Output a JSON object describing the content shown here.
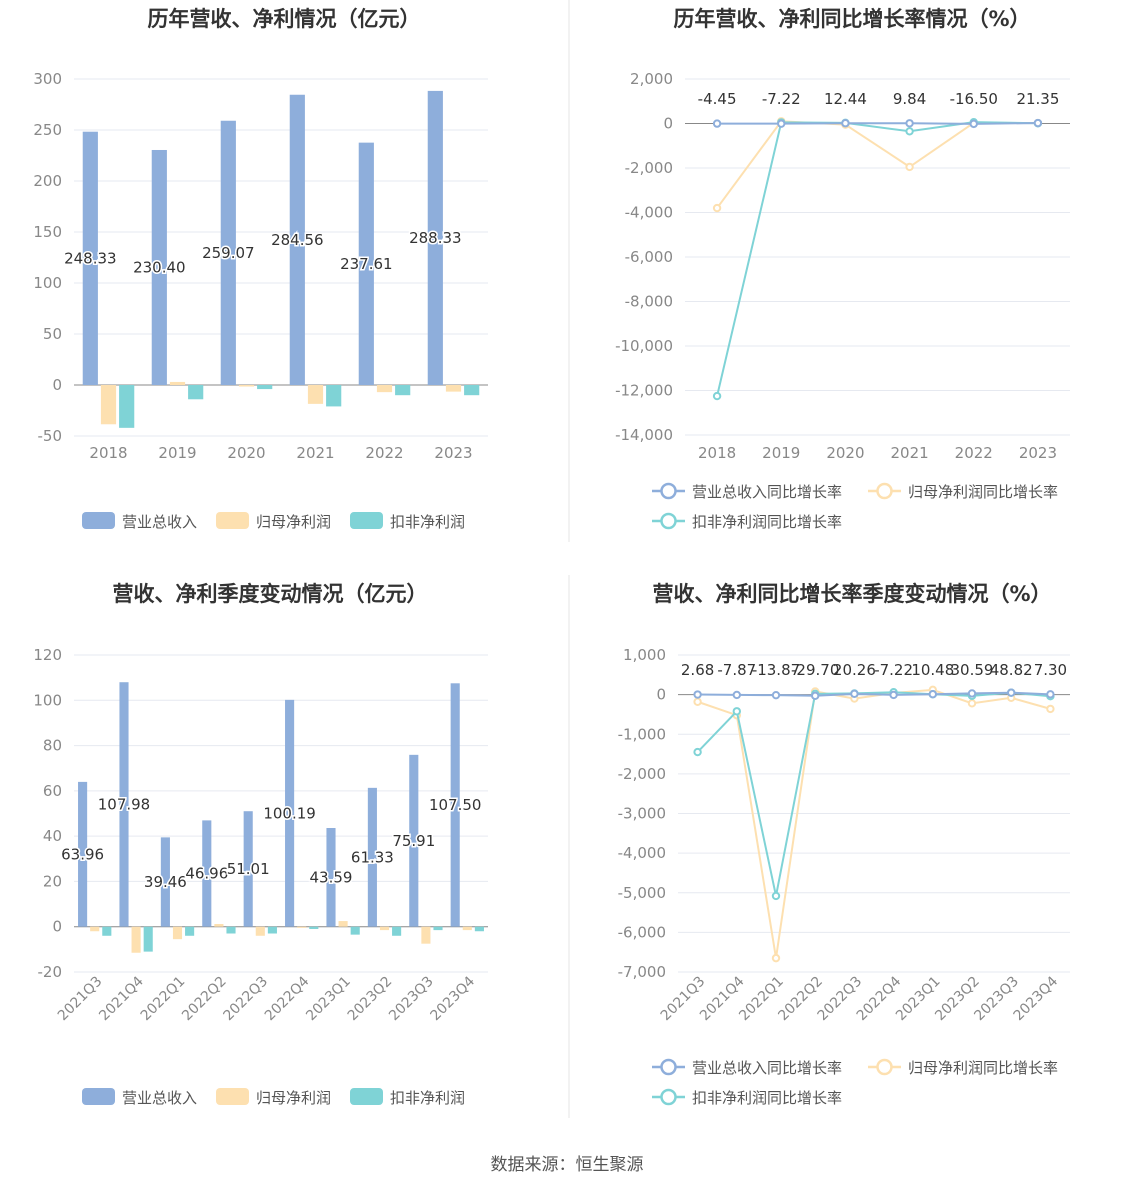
{
  "footer": {
    "source": "数据来源：恒生聚源"
  },
  "colors": {
    "revenue": "#8eaedb",
    "net_profit": "#fde0b0",
    "deducted_profit": "#7fd3d6",
    "grid": "#e6e9f0",
    "axis_text": "#888888",
    "label_text": "#333333",
    "title_text": "#333333",
    "divider": "#e0e0e0"
  },
  "chart_data": [
    {
      "type": "bar",
      "title": "历年营收、净利情况（亿元）",
      "categories": [
        "2018",
        "2019",
        "2020",
        "2021",
        "2022",
        "2023"
      ],
      "series": [
        {
          "name": "营业总收入",
          "color": "#8eaedb",
          "values": [
            248.33,
            230.4,
            259.07,
            284.56,
            237.61,
            288.33
          ],
          "labels": [
            "248.33",
            "230.40",
            "259.07",
            "284.56",
            "237.61",
            "288.33"
          ]
        },
        {
          "name": "归母净利润",
          "color": "#fde0b0",
          "values": [
            -38.5,
            3.0,
            -1.5,
            -18.5,
            -7.0,
            -6.5
          ]
        },
        {
          "name": "扣非净利润",
          "color": "#7fd3d6",
          "values": [
            -42.0,
            -14.0,
            -4.0,
            -21.0,
            -10.0,
            -10.0
          ]
        }
      ],
      "ylim": [
        -50,
        300
      ],
      "yticks": [
        "300",
        "250",
        "200",
        "150",
        "100",
        "50",
        "0",
        "-50"
      ],
      "ytick_values": [
        300,
        250,
        200,
        150,
        100,
        50,
        0,
        -50
      ],
      "grid": true,
      "legend": "bottom"
    },
    {
      "type": "line",
      "title": "历年营收、净利同比增长率情况（%）",
      "categories": [
        "2018",
        "2019",
        "2020",
        "2021",
        "2022",
        "2023"
      ],
      "series": [
        {
          "name": "营业总收入同比增长率",
          "color": "#8eaedb",
          "values": [
            -4.45,
            -7.22,
            12.44,
            9.84,
            -16.5,
            21.35
          ],
          "labels": [
            "-4.45",
            "-7.22",
            "12.44",
            "9.84",
            "-16.50",
            "21.35"
          ]
        },
        {
          "name": "归母净利润同比增长率",
          "color": "#fde0b0",
          "values": [
            -3800,
            100,
            -50,
            -1950,
            30,
            20
          ]
        },
        {
          "name": "扣非净利润同比增长率",
          "color": "#7fd3d6",
          "values": [
            -12250,
            50,
            30,
            -350,
            60,
            10
          ]
        }
      ],
      "ylim": [
        -14000,
        2000
      ],
      "yticks": [
        "2,000",
        "0",
        "-2,000",
        "-4,000",
        "-6,000",
        "-8,000",
        "-10,000",
        "-12,000",
        "-14,000"
      ],
      "ytick_values": [
        2000,
        0,
        -2000,
        -4000,
        -6000,
        -8000,
        -10000,
        -12000,
        -14000
      ],
      "grid": true,
      "legend": "bottom"
    },
    {
      "type": "bar",
      "title": "营收、净利季度变动情况（亿元）",
      "categories": [
        "2021Q3",
        "2021Q4",
        "2022Q1",
        "2022Q2",
        "2022Q3",
        "2022Q4",
        "2023Q1",
        "2023Q2",
        "2023Q3",
        "2023Q4"
      ],
      "series": [
        {
          "name": "营业总收入",
          "color": "#8eaedb",
          "values": [
            63.96,
            107.98,
            39.46,
            46.96,
            51.01,
            100.19,
            43.59,
            61.33,
            75.91,
            107.5
          ],
          "labels": [
            "63.96",
            "107.98",
            "39.46",
            "46.96",
            "51.01",
            "100.19",
            "43.59",
            "61.33",
            "75.91",
            "107.50"
          ]
        },
        {
          "name": "归母净利润",
          "color": "#fde0b0",
          "values": [
            -2.0,
            -11.5,
            -5.5,
            1.2,
            -4.0,
            -0.5,
            2.5,
            -1.5,
            -7.5,
            -1.5
          ]
        },
        {
          "name": "扣非净利润",
          "color": "#7fd3d6",
          "values": [
            -4.0,
            -11.0,
            -4.0,
            -3.0,
            -3.0,
            -1.0,
            -3.5,
            -4.0,
            -1.5,
            -2.0
          ]
        }
      ],
      "ylim": [
        -20,
        120
      ],
      "yticks": [
        "120",
        "100",
        "80",
        "60",
        "40",
        "20",
        "0",
        "-20"
      ],
      "ytick_values": [
        120,
        100,
        80,
        60,
        40,
        20,
        0,
        -20
      ],
      "grid": true,
      "legend": "bottom"
    },
    {
      "type": "line",
      "title": "营收、净利同比增长率季度变动情况（%）",
      "categories": [
        "2021Q3",
        "2021Q4",
        "2022Q1",
        "2022Q2",
        "2022Q3",
        "2022Q4",
        "2023Q1",
        "2023Q2",
        "2023Q3",
        "2023Q4"
      ],
      "series": [
        {
          "name": "营业总收入同比增长率",
          "color": "#8eaedb",
          "values": [
            2.68,
            -7.87,
            -13.87,
            -29.7,
            20.26,
            -7.22,
            10.48,
            30.59,
            48.82,
            7.3
          ],
          "labels": [
            "2.68",
            "-7.87",
            "-13.87",
            "-29.70",
            "20.26",
            "-7.22",
            "10.48",
            "30.59",
            "48.82",
            "7.30"
          ]
        },
        {
          "name": "归母净利润同比增长率",
          "color": "#fde0b0",
          "values": [
            -180,
            -520,
            -6650,
            80,
            -100,
            40,
            120,
            -220,
            -80,
            -360
          ]
        },
        {
          "name": "扣非净利润同比增长率",
          "color": "#7fd3d6",
          "values": [
            -1450,
            -420,
            -5080,
            20,
            30,
            60,
            10,
            -30,
            50,
            -40
          ]
        }
      ],
      "ylim": [
        -7000,
        1000
      ],
      "yticks": [
        "1,000",
        "0",
        "-1,000",
        "-2,000",
        "-3,000",
        "-4,000",
        "-5,000",
        "-6,000",
        "-7,000"
      ],
      "ytick_values": [
        1000,
        0,
        -1000,
        -2000,
        -3000,
        -4000,
        -5000,
        -6000,
        -7000
      ],
      "grid": true,
      "legend": "bottom"
    }
  ]
}
